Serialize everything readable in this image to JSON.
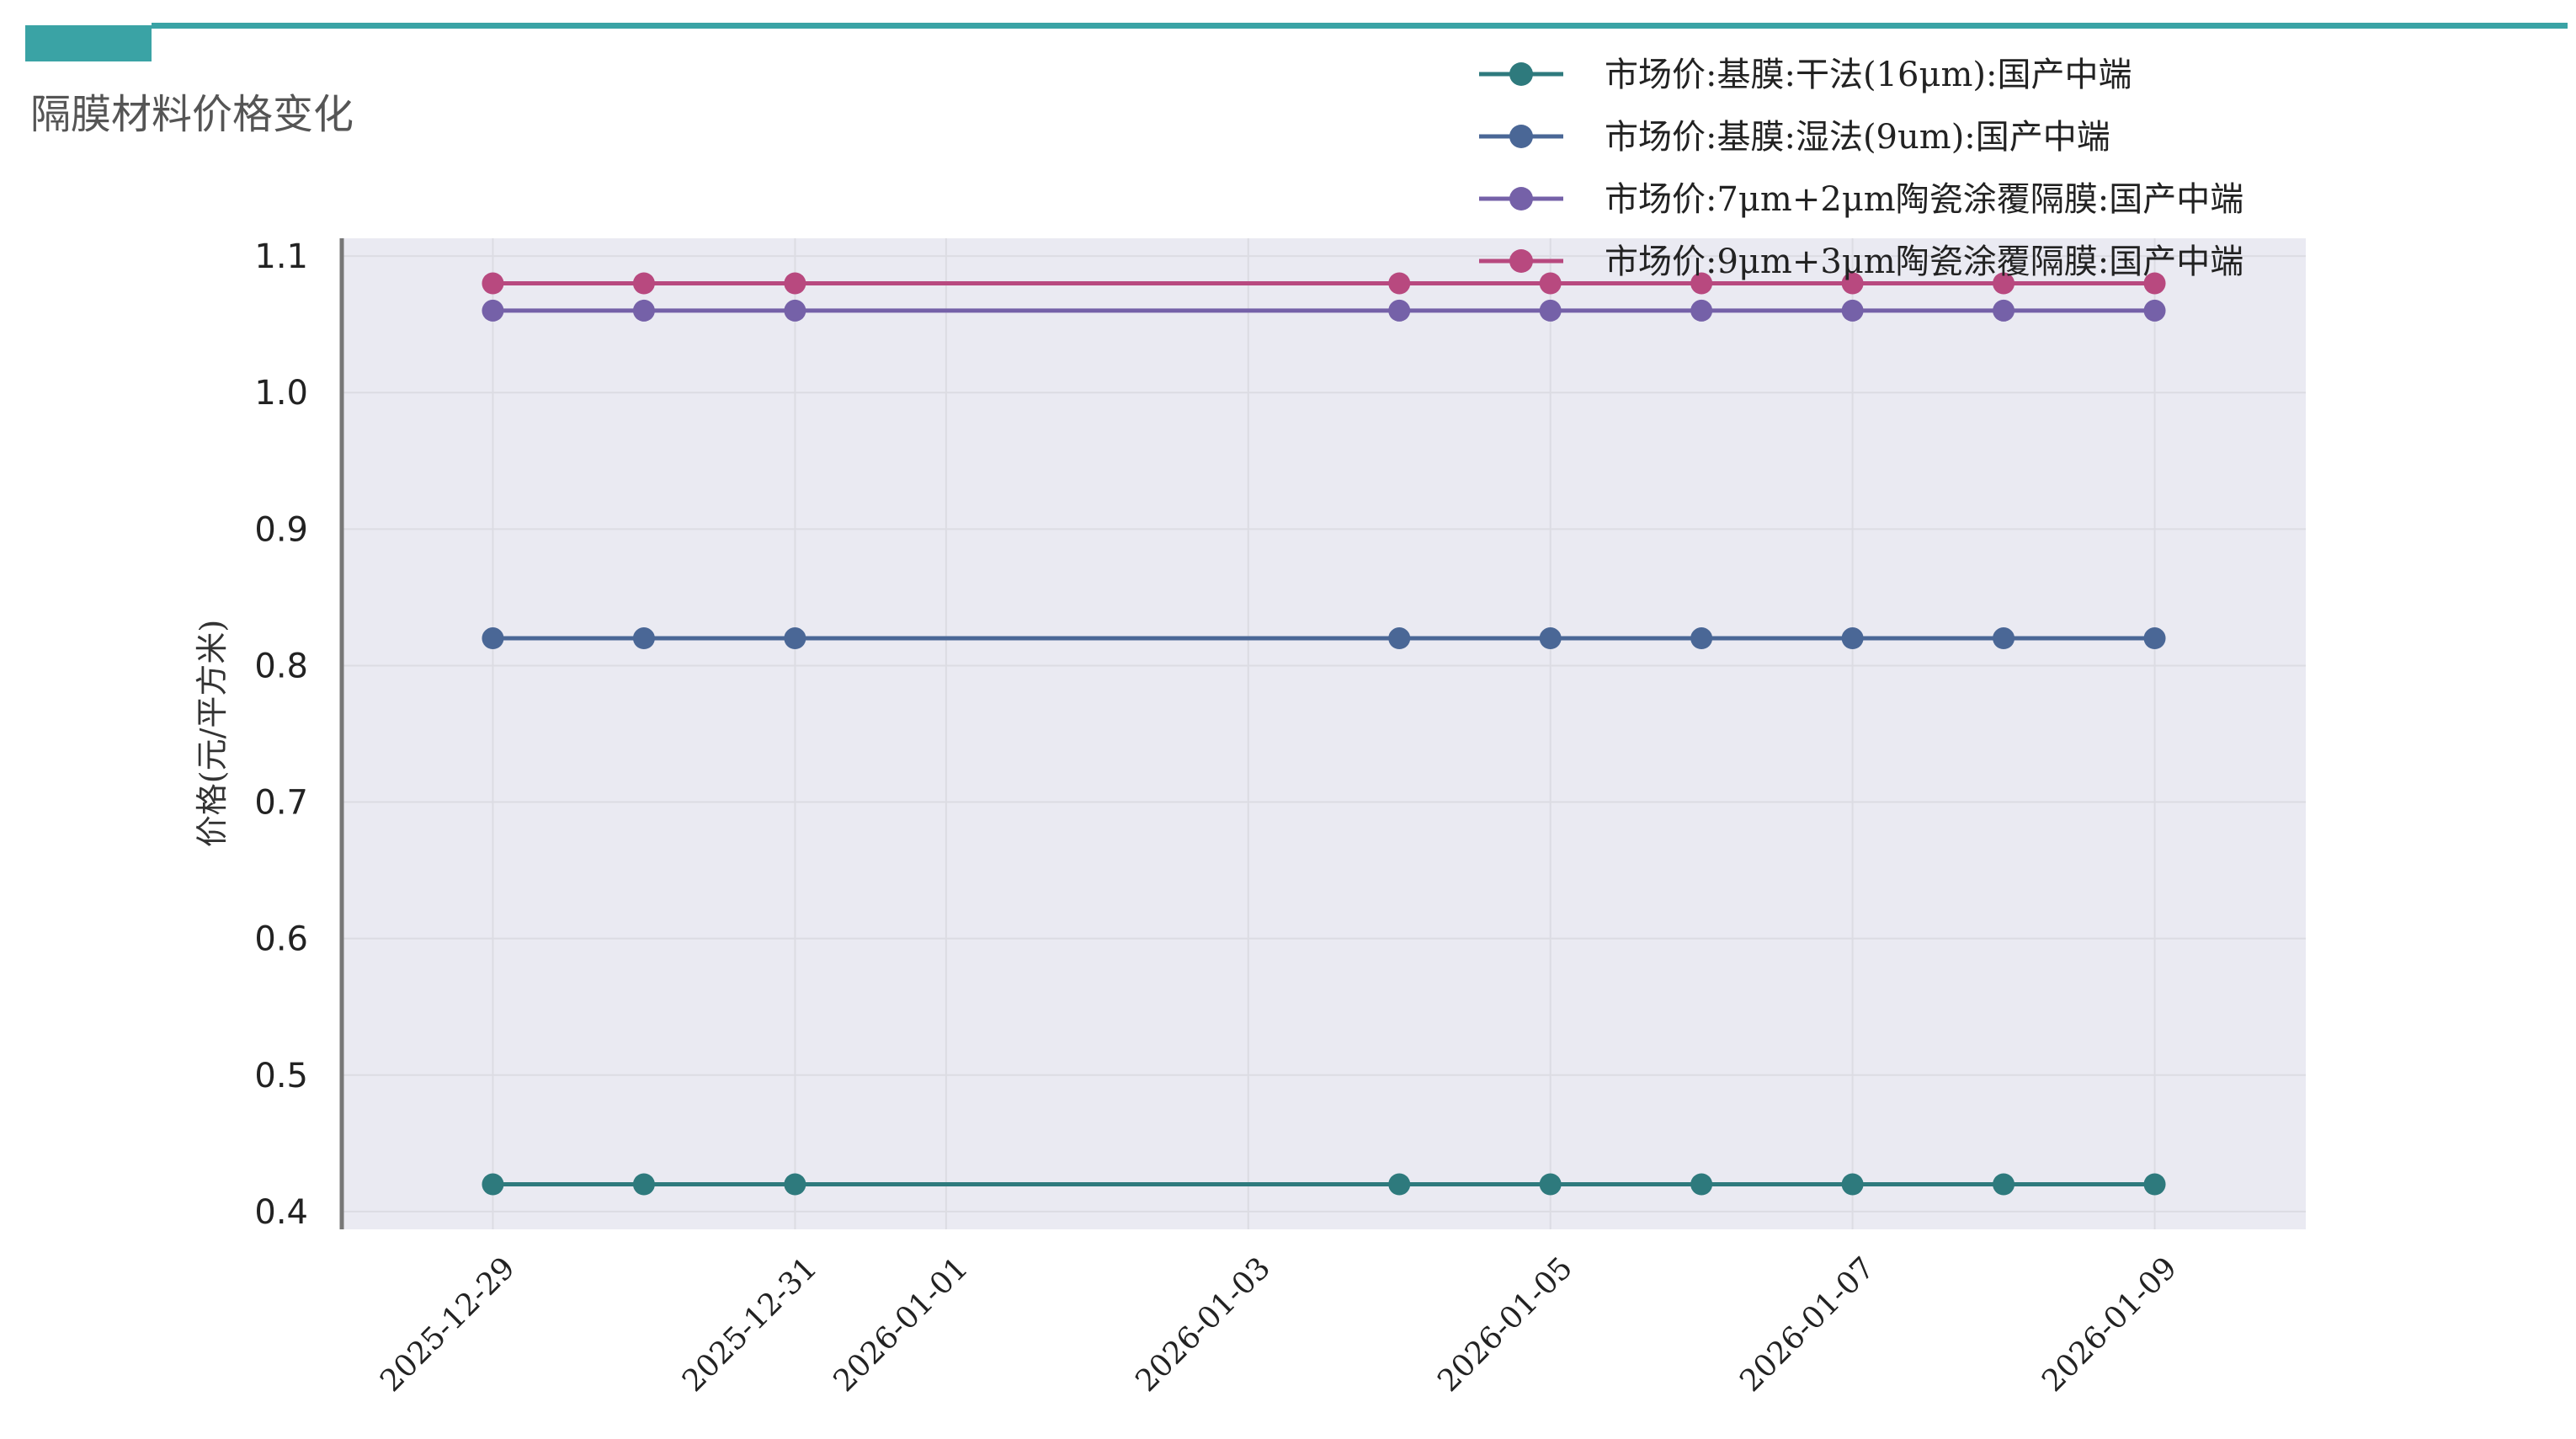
{
  "header": {
    "title": "隔膜材料价格变化",
    "accent_color": "#3aa3a5",
    "line_color": "#3aa3a5"
  },
  "chart_data": {
    "type": "line",
    "title": "隔膜材料价格变化",
    "xlabel": "",
    "ylabel": "价格(元/平方米)",
    "ylim": [
      0.4,
      1.1
    ],
    "xlim": [
      "2025-12-28",
      "2026-01-10"
    ],
    "grid": true,
    "legend_position": "top-right",
    "x": [
      "2025-12-29",
      "2025-12-30",
      "2025-12-31",
      "2026-01-04",
      "2026-01-05",
      "2026-01-06",
      "2026-01-07",
      "2026-01-08",
      "2026-01-09"
    ],
    "x_tick_labels": [
      "2025-12-29",
      "2025-12-31",
      "2026-01-01",
      "2026-01-03",
      "2026-01-05",
      "2026-01-07",
      "2026-01-09"
    ],
    "y_ticks": [
      0.4,
      0.5,
      0.6,
      0.7,
      0.8,
      0.9,
      1.0,
      1.1
    ],
    "y_tick_labels": [
      "0.4",
      "0.5",
      "0.6",
      "0.7",
      "0.8",
      "0.9",
      "1.0",
      "1.1"
    ],
    "series": [
      {
        "name": "市场价:基膜:干法(16μm):国产中端",
        "color": "#2e7a7d",
        "values": [
          0.42,
          0.42,
          0.42,
          0.42,
          0.42,
          0.42,
          0.42,
          0.42,
          0.42
        ]
      },
      {
        "name": "市场价:基膜:湿法(9um):国产中端",
        "color": "#4a6796",
        "values": [
          0.82,
          0.82,
          0.82,
          0.82,
          0.82,
          0.82,
          0.82,
          0.82,
          0.82
        ]
      },
      {
        "name": "市场价:7μm+2μm陶瓷涂覆隔膜:国产中端",
        "color": "#7561a8",
        "values": [
          1.06,
          1.06,
          1.06,
          1.06,
          1.06,
          1.06,
          1.06,
          1.06,
          1.06
        ]
      },
      {
        "name": "市场价:9μm+3μm陶瓷涂覆隔膜:国产中端",
        "color": "#b8497f",
        "values": [
          1.08,
          1.08,
          1.08,
          1.08,
          1.08,
          1.08,
          1.08,
          1.08,
          1.08
        ]
      }
    ]
  }
}
